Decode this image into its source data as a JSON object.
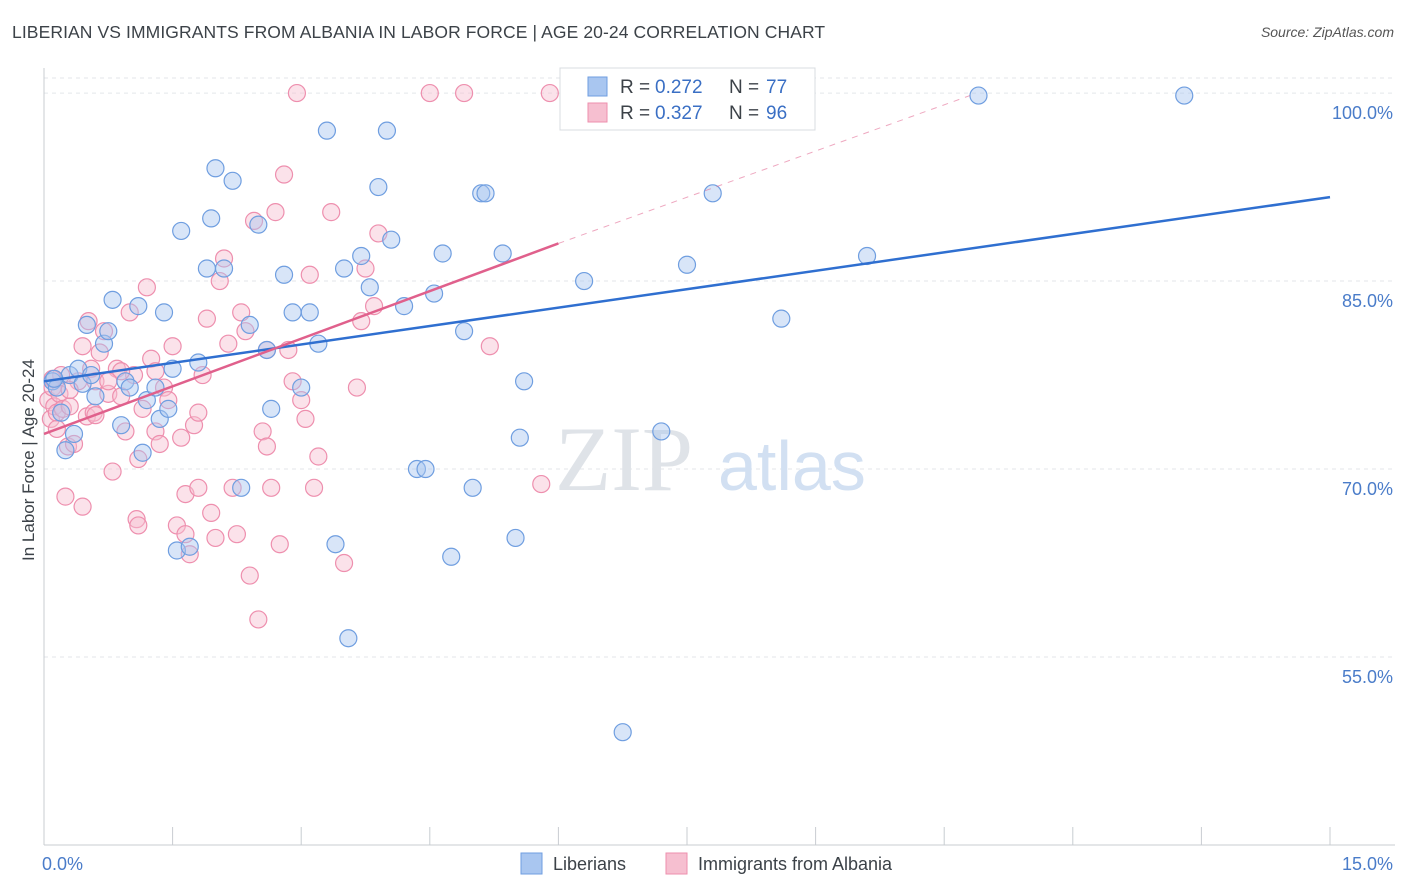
{
  "title": "LIBERIAN VS IMMIGRANTS FROM ALBANIA IN LABOR FORCE | AGE 20-24 CORRELATION CHART",
  "source": "Source: ZipAtlas.com",
  "watermark": {
    "zip": "ZIP",
    "atlas": "atlas"
  },
  "colors": {
    "blue_fill": "#a9c6f0",
    "blue_stroke": "#6f9ee0",
    "blue_line": "#2f6fd0",
    "pink_fill": "#f6bfd0",
    "pink_stroke": "#ee8fae",
    "pink_line": "#e0608c",
    "tick_text": "#4a7cc9",
    "grid": "#e3e6ea"
  },
  "chart_data": {
    "type": "scatter",
    "xlabel": "",
    "ylabel": "In Labor Force | Age 20-24",
    "xlim": [
      0,
      15
    ],
    "ylim": [
      40,
      102
    ],
    "x_tick_labels": [
      "0.0%",
      "15.0%"
    ],
    "y_ticks": [
      55,
      70,
      85,
      100
    ],
    "y_tick_labels": [
      "55.0%",
      "70.0%",
      "85.0%",
      "100.0%"
    ],
    "legend": {
      "position": "top-center",
      "entries": [
        {
          "r_label": "R =",
          "r_value": "0.272",
          "n_label": "N =",
          "n_value": "77"
        },
        {
          "r_label": "R =",
          "r_value": "0.327",
          "n_label": "N =",
          "n_value": "96"
        }
      ]
    },
    "series": [
      {
        "name": "Liberians",
        "color": "#a9c6f0",
        "trend": {
          "x0": 0.0,
          "y0": 77.0,
          "x1": 15.0,
          "y1": 91.7
        },
        "points": [
          [
            0.1,
            77.0
          ],
          [
            0.15,
            76.5
          ],
          [
            0.2,
            74.5
          ],
          [
            0.25,
            71.5
          ],
          [
            0.3,
            77.5
          ],
          [
            0.35,
            72.8
          ],
          [
            0.4,
            78.0
          ],
          [
            0.45,
            76.8
          ],
          [
            0.5,
            81.5
          ],
          [
            0.55,
            77.5
          ],
          [
            0.6,
            75.8
          ],
          [
            0.7,
            80.0
          ],
          [
            0.75,
            81.0
          ],
          [
            0.8,
            83.5
          ],
          [
            0.9,
            73.5
          ],
          [
            0.95,
            77.0
          ],
          [
            1.0,
            76.5
          ],
          [
            1.1,
            83.0
          ],
          [
            1.15,
            71.3
          ],
          [
            1.2,
            75.5
          ],
          [
            1.3,
            76.5
          ],
          [
            1.35,
            74.0
          ],
          [
            1.4,
            82.5
          ],
          [
            1.45,
            74.8
          ],
          [
            1.5,
            78.0
          ],
          [
            1.55,
            63.5
          ],
          [
            1.6,
            89.0
          ],
          [
            1.7,
            63.8
          ],
          [
            1.8,
            78.5
          ],
          [
            1.9,
            86.0
          ],
          [
            1.95,
            90.0
          ],
          [
            2.0,
            94.0
          ],
          [
            2.1,
            86.0
          ],
          [
            2.2,
            93.0
          ],
          [
            2.3,
            68.5
          ],
          [
            2.4,
            81.5
          ],
          [
            2.5,
            89.5
          ],
          [
            2.6,
            79.5
          ],
          [
            2.65,
            74.8
          ],
          [
            2.8,
            85.5
          ],
          [
            2.9,
            82.5
          ],
          [
            3.0,
            76.5
          ],
          [
            3.1,
            82.5
          ],
          [
            3.2,
            80.0
          ],
          [
            3.3,
            97.0
          ],
          [
            3.4,
            64.0
          ],
          [
            3.5,
            86.0
          ],
          [
            3.55,
            56.5
          ],
          [
            3.7,
            87.0
          ],
          [
            3.8,
            84.5
          ],
          [
            3.9,
            92.5
          ],
          [
            4.0,
            97.0
          ],
          [
            4.05,
            88.3
          ],
          [
            4.2,
            83.0
          ],
          [
            4.35,
            70.0
          ],
          [
            4.45,
            70.0
          ],
          [
            4.55,
            84.0
          ],
          [
            4.65,
            87.2
          ],
          [
            4.75,
            63.0
          ],
          [
            4.9,
            81.0
          ],
          [
            5.0,
            68.5
          ],
          [
            5.1,
            92.0
          ],
          [
            5.15,
            92.0
          ],
          [
            5.35,
            87.2
          ],
          [
            5.5,
            64.5
          ],
          [
            5.55,
            72.5
          ],
          [
            5.6,
            77.0
          ],
          [
            6.3,
            85.0
          ],
          [
            6.75,
            49.0
          ],
          [
            7.2,
            73.0
          ],
          [
            7.5,
            86.3
          ],
          [
            7.8,
            92.0
          ],
          [
            8.6,
            82.0
          ],
          [
            9.6,
            87.0
          ],
          [
            10.9,
            99.8
          ],
          [
            13.3,
            99.8
          ],
          [
            0.12,
            77.2
          ]
        ]
      },
      {
        "name": "Immigrants from Albania",
        "color": "#f6bfd0",
        "trend": {
          "x0": 0.0,
          "y0": 72.8,
          "x1": 6.0,
          "y1": 88.0
        },
        "trend_dashed": {
          "x0": 6.0,
          "y0": 88.0,
          "x1": 10.8,
          "y1": 99.8
        },
        "points": [
          [
            0.05,
            75.5
          ],
          [
            0.08,
            74.0
          ],
          [
            0.1,
            76.5
          ],
          [
            0.12,
            75.0
          ],
          [
            0.15,
            74.5
          ],
          [
            0.18,
            76.0
          ],
          [
            0.2,
            77.5
          ],
          [
            0.22,
            74.8
          ],
          [
            0.25,
            67.8
          ],
          [
            0.28,
            71.8
          ],
          [
            0.3,
            75.0
          ],
          [
            0.35,
            72.0
          ],
          [
            0.4,
            77.0
          ],
          [
            0.45,
            67.0
          ],
          [
            0.5,
            74.2
          ],
          [
            0.52,
            81.8
          ],
          [
            0.55,
            78.0
          ],
          [
            0.58,
            74.5
          ],
          [
            0.6,
            77.0
          ],
          [
            0.65,
            79.3
          ],
          [
            0.7,
            81.0
          ],
          [
            0.75,
            76.0
          ],
          [
            0.8,
            69.8
          ],
          [
            0.85,
            78.0
          ],
          [
            0.9,
            75.8
          ],
          [
            0.95,
            73.0
          ],
          [
            1.0,
            82.5
          ],
          [
            1.05,
            77.5
          ],
          [
            1.08,
            66.0
          ],
          [
            1.1,
            65.5
          ],
          [
            1.15,
            74.8
          ],
          [
            1.2,
            84.5
          ],
          [
            1.25,
            78.8
          ],
          [
            1.3,
            73.0
          ],
          [
            1.35,
            72.0
          ],
          [
            1.4,
            76.5
          ],
          [
            1.45,
            75.5
          ],
          [
            1.5,
            79.8
          ],
          [
            1.55,
            65.5
          ],
          [
            1.6,
            72.5
          ],
          [
            1.65,
            68.0
          ],
          [
            1.7,
            63.2
          ],
          [
            1.75,
            73.5
          ],
          [
            1.8,
            68.5
          ],
          [
            1.85,
            77.5
          ],
          [
            1.9,
            82.0
          ],
          [
            1.95,
            66.5
          ],
          [
            2.0,
            64.5
          ],
          [
            2.05,
            85.0
          ],
          [
            2.1,
            86.8
          ],
          [
            2.15,
            80.0
          ],
          [
            2.2,
            68.5
          ],
          [
            2.25,
            64.8
          ],
          [
            2.3,
            82.5
          ],
          [
            2.35,
            81.0
          ],
          [
            2.4,
            61.5
          ],
          [
            2.45,
            89.8
          ],
          [
            2.5,
            58.0
          ],
          [
            2.55,
            73.0
          ],
          [
            2.6,
            71.8
          ],
          [
            2.65,
            68.5
          ],
          [
            2.7,
            90.5
          ],
          [
            2.75,
            64.0
          ],
          [
            2.8,
            93.5
          ],
          [
            2.85,
            79.5
          ],
          [
            2.9,
            77.0
          ],
          [
            2.95,
            100.0
          ],
          [
            3.0,
            75.5
          ],
          [
            3.05,
            74.0
          ],
          [
            3.1,
            85.5
          ],
          [
            3.15,
            68.5
          ],
          [
            3.2,
            71.0
          ],
          [
            3.35,
            90.5
          ],
          [
            3.5,
            62.5
          ],
          [
            3.65,
            76.5
          ],
          [
            3.7,
            81.8
          ],
          [
            3.75,
            86.0
          ],
          [
            3.85,
            83.0
          ],
          [
            3.9,
            88.8
          ],
          [
            4.5,
            100.0
          ],
          [
            4.9,
            100.0
          ],
          [
            5.2,
            79.8
          ],
          [
            5.8,
            68.8
          ],
          [
            5.9,
            100.0
          ],
          [
            0.1,
            77.2
          ],
          [
            0.3,
            76.3
          ],
          [
            0.6,
            74.3
          ],
          [
            0.9,
            77.8
          ],
          [
            1.3,
            77.8
          ],
          [
            1.65,
            64.8
          ],
          [
            2.6,
            79.5
          ],
          [
            0.15,
            73.2
          ],
          [
            0.45,
            79.8
          ],
          [
            0.75,
            77.0
          ],
          [
            1.1,
            70.8
          ],
          [
            1.8,
            74.5
          ]
        ]
      }
    ]
  },
  "bottom_legend": [
    "Liberians",
    "Immigrants from Albania"
  ]
}
